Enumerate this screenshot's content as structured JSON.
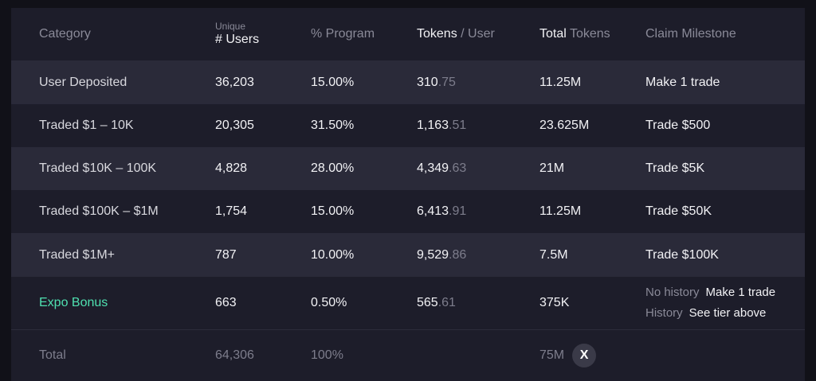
{
  "header": {
    "category": "Category",
    "users_small": "Unique",
    "users_big": "# Users",
    "program": "% Program",
    "tokens_user_hl": "Tokens",
    "tokens_user_rest": " / User",
    "total_tokens_hl": "Total",
    "total_tokens_rest": " Tokens",
    "milestone": "Claim Milestone"
  },
  "rows": [
    {
      "category": "User Deposited",
      "users": "36,203",
      "program": "15.00%",
      "tok_int": "310",
      "tok_dec": ".75",
      "total": "11.25M",
      "milestone": "Make 1 trade"
    },
    {
      "category": "Traded $1 – 10K",
      "users": "20,305",
      "program": "31.50%",
      "tok_int": "1,163",
      "tok_dec": ".51",
      "total": "23.625M",
      "milestone": "Trade $500"
    },
    {
      "category": "Traded $10K – 100K",
      "users": "4,828",
      "program": "28.00%",
      "tok_int": "4,349",
      "tok_dec": ".63",
      "total": "21M",
      "milestone": "Trade $5K"
    },
    {
      "category": "Traded $100K – $1M",
      "users": "1,754",
      "program": "15.00%",
      "tok_int": "6,413",
      "tok_dec": ".91",
      "total": "11.25M",
      "milestone": "Trade $50K"
    },
    {
      "category": "Traded $1M+",
      "users": "787",
      "program": "10.00%",
      "tok_int": "9,529",
      "tok_dec": ".86",
      "total": "7.5M",
      "milestone": "Trade $100K"
    }
  ],
  "bonus": {
    "category": "Expo Bonus",
    "users": "663",
    "program": "0.50%",
    "tok_int": "565",
    "tok_dec": ".61",
    "total": "375K",
    "no_history_label": "No history",
    "no_history_value": "Make 1 trade",
    "history_label": "History",
    "history_value": "See tier above"
  },
  "total": {
    "label": "Total",
    "users": "64,306",
    "program": "100%",
    "tokens": "75M",
    "x_glyph": "X"
  },
  "colors": {
    "background": "#111118",
    "panel": "#1d1d2a",
    "stripe": "#2a2a39",
    "accent_mint": "#4fe0b0"
  }
}
